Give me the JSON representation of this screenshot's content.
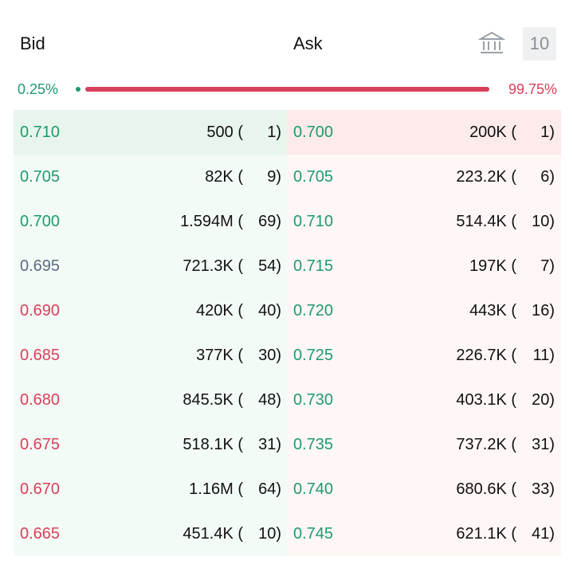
{
  "header": {
    "bid": "Bid",
    "ask": "Ask",
    "depth": "10"
  },
  "ratio": {
    "bid": "0.25%",
    "ask": "99.75%"
  },
  "bids": [
    {
      "price": "0.710",
      "qty": "500 (",
      "count": "1)",
      "color": "#1e9b6c"
    },
    {
      "price": "0.705",
      "qty": "82K (",
      "count": "9)",
      "color": "#1e9b6c"
    },
    {
      "price": "0.700",
      "qty": "1.594M (",
      "count": "69)",
      "color": "#1e9b6c"
    },
    {
      "price": "0.695",
      "qty": "721.3K (",
      "count": "54)",
      "color": "#5d6b85"
    },
    {
      "price": "0.690",
      "qty": "420K (",
      "count": "40)",
      "color": "#d8405a"
    },
    {
      "price": "0.685",
      "qty": "377K (",
      "count": "30)",
      "color": "#d8405a"
    },
    {
      "price": "0.680",
      "qty": "845.5K (",
      "count": "48)",
      "color": "#d8405a"
    },
    {
      "price": "0.675",
      "qty": "518.1K (",
      "count": "31)",
      "color": "#d8405a"
    },
    {
      "price": "0.670",
      "qty": "1.16M (",
      "count": "64)",
      "color": "#d8405a"
    },
    {
      "price": "0.665",
      "qty": "451.4K (",
      "count": "10)",
      "color": "#d8405a"
    }
  ],
  "asks": [
    {
      "price": "0.700",
      "qty": "200K (",
      "count": "1)",
      "color": "#1e9b6c"
    },
    {
      "price": "0.705",
      "qty": "223.2K (",
      "count": "6)",
      "color": "#1e9b6c"
    },
    {
      "price": "0.710",
      "qty": "514.4K (",
      "count": "10)",
      "color": "#1e9b6c"
    },
    {
      "price": "0.715",
      "qty": "197K (",
      "count": "7)",
      "color": "#1e9b6c"
    },
    {
      "price": "0.720",
      "qty": "443K (",
      "count": "16)",
      "color": "#1e9b6c"
    },
    {
      "price": "0.725",
      "qty": "226.7K (",
      "count": "11)",
      "color": "#1e9b6c"
    },
    {
      "price": "0.730",
      "qty": "403.1K (",
      "count": "20)",
      "color": "#1e9b6c"
    },
    {
      "price": "0.735",
      "qty": "737.2K (",
      "count": "31)",
      "color": "#1e9b6c"
    },
    {
      "price": "0.740",
      "qty": "680.6K (",
      "count": "33)",
      "color": "#1e9b6c"
    },
    {
      "price": "0.745",
      "qty": "621.1K (",
      "count": "41)",
      "color": "#1e9b6c"
    }
  ]
}
